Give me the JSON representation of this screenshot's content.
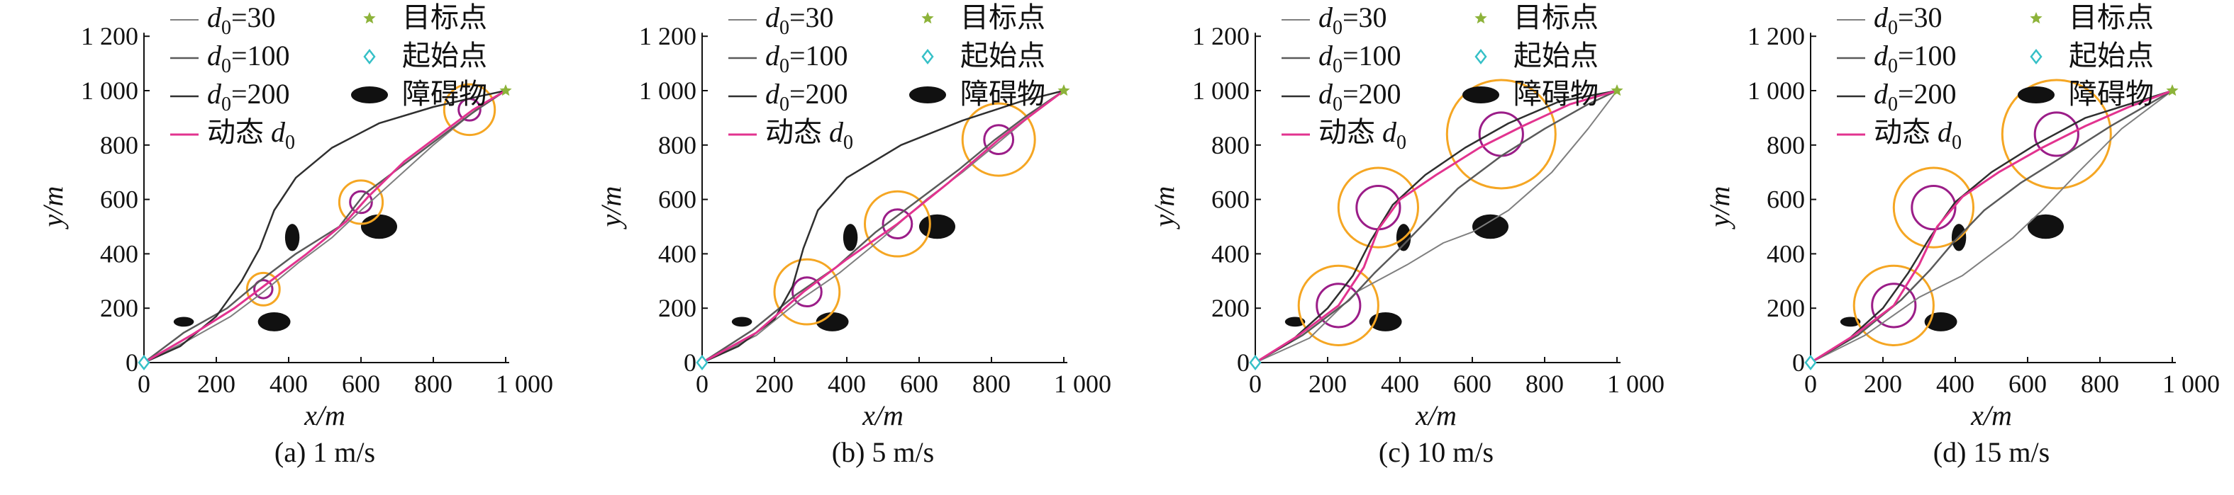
{
  "figure": {
    "legend": {
      "labels": [
        "d0=30",
        "d0=100",
        "d0=200",
        "动态 d0",
        "目标点",
        "起始点",
        "障碍物"
      ],
      "display": [
        {
          "pre": "",
          "sub": "0",
          "post": "=30"
        },
        {
          "pre": "",
          "sub": "0",
          "post": "=100"
        },
        {
          "pre": "",
          "sub": "0",
          "post": "=200"
        },
        {
          "pre": "动态 ",
          "sub": "0",
          "post": ""
        }
      ]
    },
    "colors": {
      "d0_30": "#7f7f7f",
      "d0_100": "#5a5a5a",
      "d0_200": "#2f2f2f",
      "dynamic": "#e2338f",
      "start_marker": "#35c0c7",
      "target_marker": "#8db33a",
      "circle_outer": "#f5a623",
      "circle_inner": "#9b1d88",
      "obstacle": "#111111"
    },
    "icons": {
      "target": "star-marker",
      "start": "diamond-marker",
      "obstacle": "ellipse-marker"
    }
  },
  "chart_data": [
    {
      "type": "line",
      "caption": "(a) 1 m/s",
      "xlabel": "x/m",
      "ylabel": "y/m",
      "xlim": [
        0,
        1000
      ],
      "ylim": [
        0,
        1200
      ],
      "xticks": [
        "0",
        "200",
        "400",
        "600",
        "800",
        "1 000"
      ],
      "yticks": [
        "0",
        "200",
        "400",
        "600",
        "800",
        "1 000",
        "1 200"
      ],
      "start": [
        0,
        0
      ],
      "target": [
        1000,
        1000
      ],
      "obstacles": [
        {
          "x": 110,
          "y": 150,
          "rx": 28,
          "ry": 18
        },
        {
          "x": 360,
          "y": 150,
          "rx": 45,
          "ry": 35
        },
        {
          "x": 410,
          "y": 460,
          "rx": 20,
          "ry": 50
        },
        {
          "x": 650,
          "y": 500,
          "rx": 50,
          "ry": 45
        }
      ],
      "circles": [
        {
          "x": 330,
          "y": 270,
          "r_outer": 45,
          "r_inner": 25
        },
        {
          "x": 600,
          "y": 590,
          "r_outer": 60,
          "r_inner": 30
        },
        {
          "x": 900,
          "y": 930,
          "r_outer": 70,
          "r_inner": 30
        }
      ],
      "series": [
        {
          "name": "d0=30",
          "x": [
            0,
            120,
            240,
            330,
            430,
            520,
            600,
            700,
            800,
            900,
            1000
          ],
          "y": [
            0,
            80,
            170,
            260,
            370,
            460,
            560,
            680,
            800,
            910,
            1000
          ]
        },
        {
          "name": "d0=100",
          "x": [
            0,
            110,
            230,
            320,
            420,
            540,
            610,
            710,
            820,
            920,
            1000
          ],
          "y": [
            0,
            110,
            200,
            300,
            400,
            500,
            620,
            720,
            830,
            930,
            1000
          ]
        },
        {
          "name": "d0=200",
          "x": [
            0,
            100,
            200,
            270,
            320,
            360,
            420,
            520,
            650,
            800,
            930,
            1000
          ],
          "y": [
            0,
            60,
            170,
            300,
            420,
            560,
            680,
            790,
            880,
            940,
            980,
            1000
          ]
        },
        {
          "name": "动态 d0",
          "x": [
            0,
            130,
            250,
            330,
            450,
            560,
            620,
            720,
            830,
            910,
            1000
          ],
          "y": [
            0,
            100,
            200,
            280,
            400,
            520,
            610,
            740,
            850,
            930,
            1000
          ]
        }
      ]
    },
    {
      "type": "line",
      "caption": "(b) 5 m/s",
      "xlabel": "x/m",
      "ylabel": "y/m",
      "xlim": [
        0,
        1000
      ],
      "ylim": [
        0,
        1200
      ],
      "xticks": [
        "0",
        "200",
        "400",
        "600",
        "800",
        "1 000"
      ],
      "yticks": [
        "0",
        "200",
        "400",
        "600",
        "800",
        "1 000",
        "1 200"
      ],
      "start": [
        0,
        0
      ],
      "target": [
        1000,
        1000
      ],
      "obstacles": [
        {
          "x": 110,
          "y": 150,
          "rx": 28,
          "ry": 18
        },
        {
          "x": 360,
          "y": 150,
          "rx": 45,
          "ry": 35
        },
        {
          "x": 410,
          "y": 460,
          "rx": 20,
          "ry": 50
        },
        {
          "x": 650,
          "y": 500,
          "rx": 50,
          "ry": 45
        }
      ],
      "circles": [
        {
          "x": 290,
          "y": 260,
          "r_outer": 90,
          "r_inner": 40
        },
        {
          "x": 540,
          "y": 510,
          "r_outer": 90,
          "r_inner": 40
        },
        {
          "x": 820,
          "y": 820,
          "r_outer": 100,
          "r_inner": 40
        }
      ],
      "series": [
        {
          "name": "d0=30",
          "x": [
            0,
            150,
            270,
            380,
            500,
            620,
            720,
            820,
            910,
            1000
          ],
          "y": [
            0,
            100,
            230,
            330,
            460,
            600,
            700,
            810,
            910,
            1000
          ]
        },
        {
          "name": "d0=100",
          "x": [
            0,
            140,
            260,
            370,
            480,
            600,
            710,
            810,
            900,
            1000
          ],
          "y": [
            0,
            120,
            250,
            350,
            480,
            600,
            710,
            820,
            910,
            1000
          ]
        },
        {
          "name": "d0=200",
          "x": [
            0,
            100,
            200,
            250,
            280,
            320,
            400,
            550,
            720,
            880,
            1000
          ],
          "y": [
            0,
            60,
            160,
            280,
            420,
            560,
            680,
            800,
            890,
            960,
            1000
          ]
        },
        {
          "name": "动态 d0",
          "x": [
            0,
            150,
            280,
            400,
            540,
            680,
            820,
            920,
            1000
          ],
          "y": [
            0,
            110,
            260,
            380,
            510,
            660,
            820,
            920,
            1000
          ]
        }
      ]
    },
    {
      "type": "line",
      "caption": "(c) 10 m/s",
      "xlabel": "x/m",
      "ylabel": "y/m",
      "xlim": [
        0,
        1000
      ],
      "ylim": [
        0,
        1200
      ],
      "xticks": [
        "0",
        "200",
        "400",
        "600",
        "800",
        "1 000"
      ],
      "yticks": [
        "0",
        "200",
        "400",
        "600",
        "800",
        "1 000",
        "1 200"
      ],
      "start": [
        0,
        0
      ],
      "target": [
        1000,
        1000
      ],
      "obstacles": [
        {
          "x": 110,
          "y": 150,
          "rx": 28,
          "ry": 18
        },
        {
          "x": 360,
          "y": 150,
          "rx": 45,
          "ry": 35
        },
        {
          "x": 410,
          "y": 460,
          "rx": 20,
          "ry": 50
        },
        {
          "x": 650,
          "y": 500,
          "rx": 50,
          "ry": 45
        }
      ],
      "circles": [
        {
          "x": 230,
          "y": 210,
          "r_outer": 110,
          "r_inner": 60
        },
        {
          "x": 340,
          "y": 570,
          "r_outer": 110,
          "r_inner": 60
        },
        {
          "x": 680,
          "y": 840,
          "r_outer": 150,
          "r_inner": 60
        }
      ],
      "series": [
        {
          "name": "d0=30",
          "x": [
            0,
            150,
            280,
            420,
            520,
            600,
            700,
            820,
            920,
            1000
          ],
          "y": [
            0,
            90,
            260,
            360,
            440,
            480,
            560,
            700,
            860,
            1000
          ]
        },
        {
          "name": "d0=100",
          "x": [
            0,
            130,
            260,
            330,
            400,
            480,
            560,
            680,
            800,
            920,
            1000
          ],
          "y": [
            0,
            100,
            230,
            330,
            420,
            530,
            640,
            760,
            860,
            950,
            1000
          ]
        },
        {
          "name": "d0=200",
          "x": [
            0,
            100,
            200,
            270,
            320,
            380,
            470,
            580,
            700,
            840,
            1000
          ],
          "y": [
            0,
            80,
            200,
            320,
            450,
            580,
            690,
            790,
            880,
            960,
            1000
          ]
        },
        {
          "name": "动态 d0",
          "x": [
            0,
            120,
            230,
            300,
            340,
            400,
            500,
            620,
            740,
            870,
            1000
          ],
          "y": [
            0,
            100,
            210,
            350,
            490,
            600,
            690,
            790,
            870,
            950,
            1000
          ]
        }
      ]
    },
    {
      "type": "line",
      "caption": "(d) 15 m/s",
      "xlabel": "x/m",
      "ylabel": "y/m",
      "xlim": [
        0,
        1000
      ],
      "ylim": [
        0,
        1200
      ],
      "xticks": [
        "0",
        "200",
        "400",
        "600",
        "800",
        "1 000"
      ],
      "yticks": [
        "0",
        "200",
        "400",
        "600",
        "800",
        "1 000",
        "1 200"
      ],
      "start": [
        0,
        0
      ],
      "target": [
        1000,
        1000
      ],
      "obstacles": [
        {
          "x": 110,
          "y": 150,
          "rx": 28,
          "ry": 18
        },
        {
          "x": 360,
          "y": 150,
          "rx": 45,
          "ry": 35
        },
        {
          "x": 410,
          "y": 460,
          "rx": 20,
          "ry": 50
        },
        {
          "x": 650,
          "y": 500,
          "rx": 50,
          "ry": 45
        }
      ],
      "circles": [
        {
          "x": 230,
          "y": 210,
          "r_outer": 110,
          "r_inner": 60
        },
        {
          "x": 340,
          "y": 570,
          "r_outer": 110,
          "r_inner": 60
        },
        {
          "x": 680,
          "y": 840,
          "r_outer": 150,
          "r_inner": 60
        }
      ],
      "series": [
        {
          "name": "d0=30",
          "x": [
            0,
            150,
            300,
            420,
            500,
            560,
            640,
            740,
            860,
            1000
          ],
          "y": [
            0,
            100,
            240,
            320,
            400,
            460,
            560,
            700,
            860,
            1000
          ]
        },
        {
          "name": "d0=100",
          "x": [
            0,
            130,
            250,
            330,
            400,
            480,
            580,
            700,
            830,
            1000
          ],
          "y": [
            0,
            100,
            230,
            340,
            450,
            560,
            660,
            760,
            870,
            1000
          ]
        },
        {
          "name": "d0=200",
          "x": [
            0,
            100,
            200,
            270,
            330,
            400,
            500,
            620,
            760,
            1000
          ],
          "y": [
            0,
            80,
            200,
            330,
            460,
            590,
            700,
            800,
            900,
            1000
          ]
        },
        {
          "name": "动态 d0",
          "x": [
            0,
            120,
            230,
            300,
            350,
            420,
            520,
            640,
            760,
            880,
            1000
          ],
          "y": [
            0,
            100,
            210,
            360,
            500,
            610,
            700,
            790,
            870,
            940,
            1000
          ]
        }
      ]
    }
  ]
}
